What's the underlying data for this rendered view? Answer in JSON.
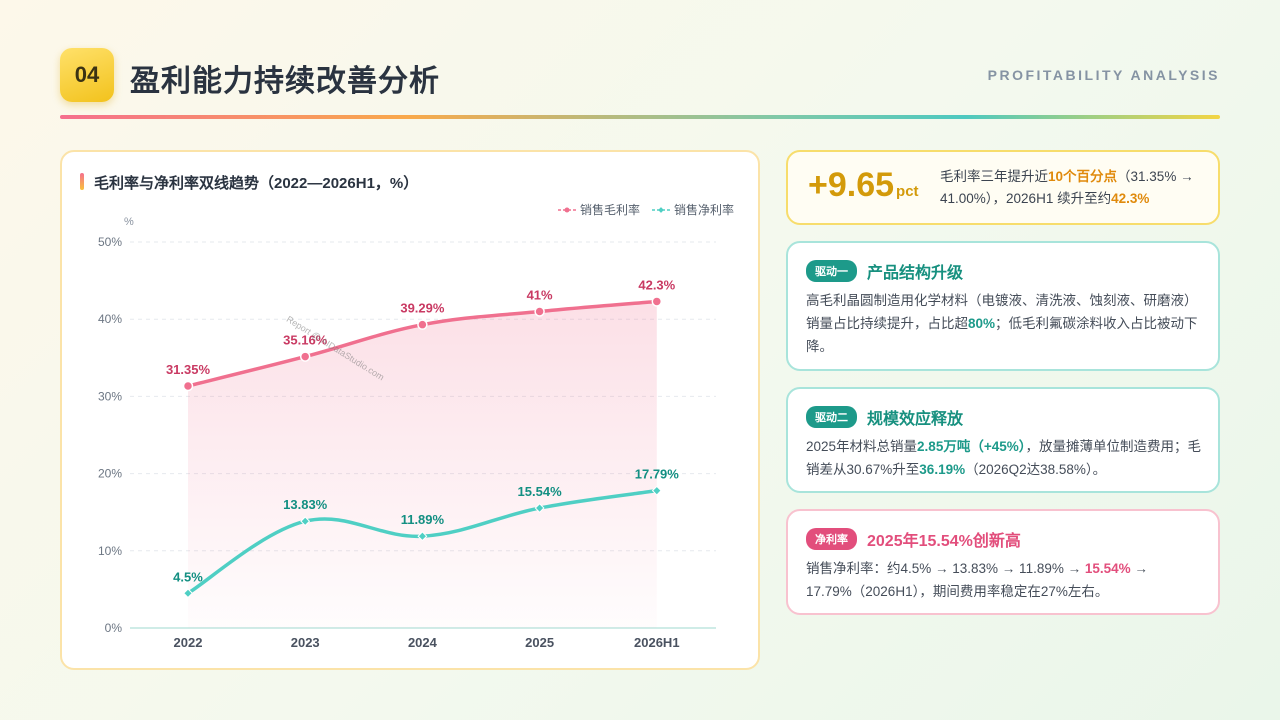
{
  "header": {
    "badge": "04",
    "title": "盈利能力持续改善分析",
    "subtitle_en": "PROFITABILITY ANALYSIS"
  },
  "chart_panel": {
    "title": "毛利率与净利率双线趋势（2022—2026H1，%）",
    "watermark": "Report @ AIDataStudio.com"
  },
  "chart_data": {
    "type": "line",
    "title": "毛利率与净利率双线趋势（2022—2026H1，%）",
    "ylabel": "%",
    "categories": [
      "2022",
      "2023",
      "2024",
      "2025",
      "2026H1"
    ],
    "ylim": [
      0,
      50
    ],
    "yticks": [
      "0%",
      "10%",
      "20%",
      "30%",
      "40%",
      "50%"
    ],
    "grid": true,
    "legend_position": "top-right",
    "series": [
      {
        "name": "销售毛利率",
        "values": [
          31.35,
          35.16,
          39.29,
          41,
          42.3
        ],
        "labels": [
          "31.35%",
          "35.16%",
          "39.29%",
          "41%",
          "42.3%"
        ],
        "color": "#f0708f",
        "label_color": "#c93a63",
        "area": true
      },
      {
        "name": "销售净利率",
        "values": [
          4.5,
          13.83,
          11.89,
          15.54,
          17.79
        ],
        "labels": [
          "4.5%",
          "13.83%",
          "11.89%",
          "15.54%",
          "17.79%"
        ],
        "color": "#4fcfc4",
        "label_color": "#138f82",
        "area": false
      }
    ]
  },
  "kpi": {
    "value": "+9.65",
    "unit": "pct",
    "desc_a": "毛利率三年提升近",
    "desc_b": "10个百分点",
    "desc_c": "（31.35% → 41.00%），2026H1 续升至约",
    "desc_d": "42.3%"
  },
  "driver1": {
    "tag": "驱动一",
    "heading": "产品结构升级",
    "body_a": "高毛利晶圆制造用化学材料（电镀液、清洗液、蚀刻液、研磨液）销量占比持续提升，占比超",
    "body_b": "80%",
    "body_c": "；低毛利氟碳涂料收入占比被动下降。"
  },
  "driver2": {
    "tag": "驱动二",
    "heading": "规模效应释放",
    "body_a": "2025年材料总销量",
    "body_b": "2.85万吨（+45%）",
    "body_c": "，放量摊薄单位制造费用；毛销差从30.67%升至",
    "body_d": "36.19%",
    "body_e": "（2026Q2达38.58%）。"
  },
  "net_margin": {
    "tag": "净利率",
    "heading": "2025年15.54%创新高",
    "body_a": "销售净利率：约4.5% → 13.83% → 11.89% → ",
    "body_b": "15.54%",
    "body_c": " → 17.79%（2026H1），期间费用率稳定在27%左右。"
  }
}
